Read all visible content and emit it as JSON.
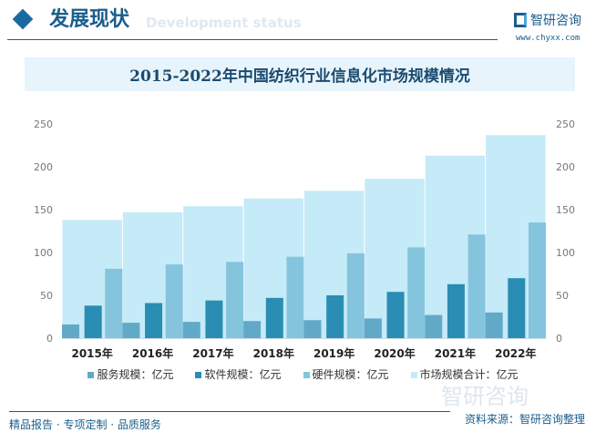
{
  "header": {
    "title": "发展现状",
    "subtitle": "Development status",
    "logo_name": "智研咨询",
    "logo_url": "www.chyxx.com"
  },
  "chart_data": {
    "type": "bar",
    "title": "2015-2022年中国纺织行业信息化市场规模情况",
    "categories": [
      "2015年",
      "2016年",
      "2017年",
      "2018年",
      "2019年",
      "2020年",
      "2021年",
      "2022年"
    ],
    "ylim": [
      0,
      250
    ],
    "yticks": [
      0,
      50,
      100,
      150,
      200,
      250
    ],
    "series": [
      {
        "name": "服务规模：亿元",
        "color": "#62a9c8",
        "values": [
          16,
          18,
          19,
          20,
          21,
          23,
          27,
          30
        ]
      },
      {
        "name": "软件规模：亿元",
        "color": "#2a8db3",
        "values": [
          38,
          41,
          44,
          47,
          50,
          54,
          63,
          70
        ]
      },
      {
        "name": "硬件规模：亿元",
        "color": "#85c4dd",
        "values": [
          81,
          86,
          89,
          95,
          99,
          106,
          121,
          135
        ]
      },
      {
        "name": "市场规模合计：亿元",
        "color": "#c5eaf8",
        "values": [
          138,
          147,
          154,
          163,
          172,
          186,
          213,
          237
        ]
      }
    ],
    "legend": "bottom"
  },
  "footer": {
    "source": "资料来源：智研咨询整理",
    "slogan": "精品报告 · 专项定制 · 品质服务",
    "watermark": "智研咨询"
  }
}
